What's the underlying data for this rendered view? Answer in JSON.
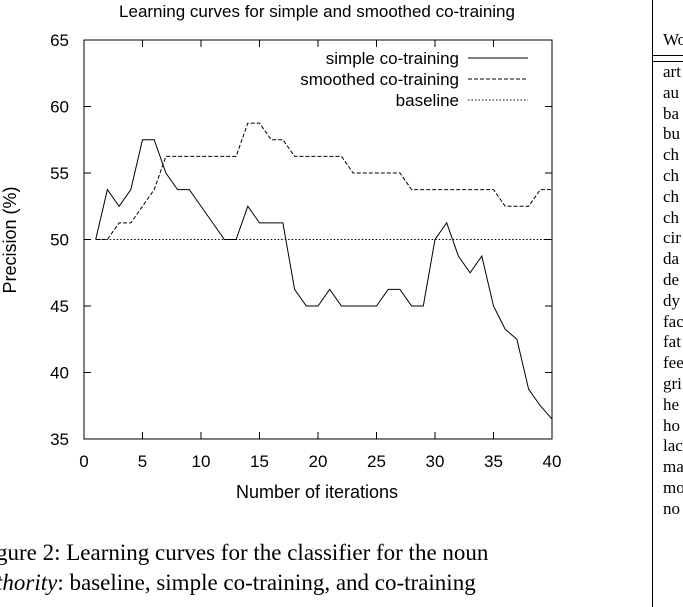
{
  "chart_data": {
    "type": "line",
    "title": "Learning curves for simple and smoothed co-training",
    "xlabel": "Number of iterations",
    "ylabel": "Precision (%)",
    "xlim": [
      0,
      40
    ],
    "ylim": [
      35,
      65
    ],
    "xticks": [
      0,
      5,
      10,
      15,
      20,
      25,
      30,
      35,
      40
    ],
    "yticks": [
      35,
      40,
      45,
      50,
      55,
      60,
      65
    ],
    "grid": false,
    "legend_position": "top-right",
    "series": [
      {
        "name": "simple co-training",
        "style": "solid",
        "x": [
          1,
          2,
          3,
          4,
          5,
          6,
          7,
          8,
          9,
          10,
          11,
          12,
          13,
          14,
          15,
          16,
          17,
          18,
          19,
          20,
          21,
          22,
          23,
          24,
          25,
          26,
          27,
          28,
          29,
          30,
          31,
          32,
          33,
          34,
          35,
          36,
          37,
          38,
          39,
          40
        ],
        "values": [
          50,
          53.75,
          52.5,
          53.75,
          57.5,
          57.5,
          55,
          53.75,
          53.75,
          52.5,
          51.25,
          50,
          50,
          52.5,
          51.25,
          51.25,
          51.25,
          46.25,
          45,
          45,
          46.25,
          45,
          45,
          45,
          45,
          46.25,
          46.25,
          45,
          45,
          50,
          51.25,
          48.75,
          47.5,
          48.75,
          45,
          43.25,
          42.5,
          38.75,
          37.5,
          36.5
        ]
      },
      {
        "name": "smoothed co-training",
        "style": "dashed",
        "x": [
          1,
          2,
          3,
          4,
          5,
          6,
          7,
          8,
          9,
          10,
          11,
          12,
          13,
          14,
          15,
          16,
          17,
          18,
          19,
          20,
          21,
          22,
          23,
          24,
          25,
          26,
          27,
          28,
          29,
          30,
          31,
          32,
          33,
          34,
          35,
          36,
          37,
          38,
          39,
          40
        ],
        "values": [
          50,
          50,
          51.25,
          51.25,
          52.5,
          53.75,
          56.25,
          56.25,
          56.25,
          56.25,
          56.25,
          56.25,
          56.25,
          58.75,
          58.75,
          57.5,
          57.5,
          56.25,
          56.25,
          56.25,
          56.25,
          56.25,
          55,
          55,
          55,
          55,
          55,
          53.75,
          53.75,
          53.75,
          53.75,
          53.75,
          53.75,
          53.75,
          53.75,
          52.5,
          52.5,
          52.5,
          53.75,
          53.75
        ]
      },
      {
        "name": "baseline",
        "style": "dotted",
        "x": [
          1,
          40
        ],
        "values": [
          50,
          50
        ]
      }
    ]
  },
  "caption": {
    "line1": "gure 2:  Learning curves for the classifier for the noun",
    "line2_italic": "thority",
    "line2_rest": ":  baseline, simple co-training, and co-training"
  },
  "side_table": {
    "header": "Wo",
    "words": [
      "art",
      "au",
      "ba",
      "bu",
      "ch",
      "ch",
      "ch",
      "ch",
      "cir",
      "da",
      "de",
      "dy",
      "fac",
      "fat",
      "fee",
      "gri",
      "he",
      "ho",
      "lac",
      "ma",
      "mo",
      "no"
    ]
  },
  "colors": {
    "lines": "#000000",
    "background": "#ffffff"
  }
}
